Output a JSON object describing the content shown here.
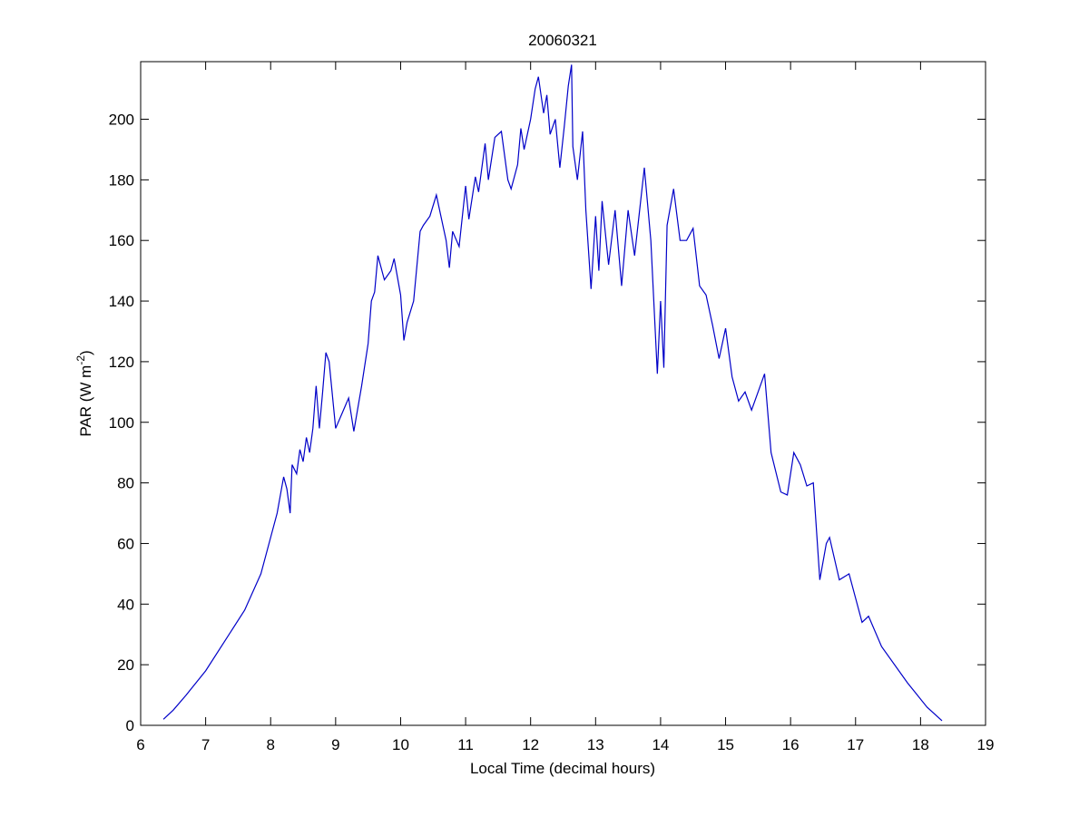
{
  "chart_data": {
    "type": "line",
    "title": "20060321",
    "xlabel": "Local Time (decimal hours)",
    "ylabel": [
      "PAR (W m",
      "-2",
      ")"
    ],
    "xlim": [
      6,
      19
    ],
    "xticks": [
      6,
      7,
      8,
      9,
      10,
      11,
      12,
      13,
      14,
      15,
      16,
      17,
      18,
      19
    ],
    "ylim": [
      0,
      219
    ],
    "yticks": [
      0,
      20,
      40,
      60,
      80,
      100,
      120,
      140,
      160,
      180,
      200
    ],
    "series": [
      {
        "color": "#0000c8",
        "x": [
          6.35,
          6.5,
          6.7,
          7.0,
          7.3,
          7.6,
          7.85,
          8.0,
          8.1,
          8.2,
          8.25,
          8.3,
          8.33,
          8.4,
          8.45,
          8.5,
          8.55,
          8.6,
          8.65,
          8.7,
          8.75,
          8.8,
          8.85,
          8.9,
          9.0,
          9.1,
          9.2,
          9.28,
          9.4,
          9.5,
          9.55,
          9.6,
          9.65,
          9.75,
          9.85,
          9.9,
          10.0,
          10.05,
          10.1,
          10.2,
          10.3,
          10.35,
          10.45,
          10.55,
          10.65,
          10.7,
          10.75,
          10.8,
          10.9,
          11.0,
          11.05,
          11.15,
          11.2,
          11.3,
          11.35,
          11.45,
          11.55,
          11.65,
          11.7,
          11.8,
          11.85,
          11.9,
          12.0,
          12.07,
          12.12,
          12.2,
          12.25,
          12.3,
          12.38,
          12.45,
          12.52,
          12.58,
          12.63,
          12.65,
          12.72,
          12.8,
          12.85,
          12.93,
          13.0,
          13.05,
          13.1,
          13.2,
          13.3,
          13.4,
          13.5,
          13.6,
          13.75,
          13.85,
          13.95,
          14.0,
          14.05,
          14.1,
          14.2,
          14.3,
          14.4,
          14.5,
          14.6,
          14.7,
          14.8,
          14.9,
          15.0,
          15.1,
          15.2,
          15.3,
          15.4,
          15.5,
          15.6,
          15.7,
          15.85,
          15.95,
          16.05,
          16.15,
          16.25,
          16.35,
          16.45,
          16.55,
          16.6,
          16.75,
          16.9,
          17.0,
          17.1,
          17.2,
          17.4,
          17.8,
          18.1,
          18.33
        ],
        "values": [
          2,
          5,
          10,
          18,
          28,
          38,
          50,
          62,
          70,
          82,
          78,
          70,
          86,
          83,
          91,
          87,
          95,
          90,
          98,
          112,
          98,
          110,
          123,
          120,
          98,
          103,
          108,
          97,
          112,
          126,
          140,
          143,
          155,
          147,
          150,
          154,
          142,
          127,
          133,
          140,
          163,
          165,
          168,
          175,
          165,
          160,
          151,
          163,
          158,
          178,
          167,
          181,
          176,
          192,
          180,
          194,
          196,
          180,
          177,
          185,
          197,
          190,
          200,
          210,
          214,
          202,
          208,
          195,
          200,
          184,
          198,
          211,
          218,
          191,
          180,
          196,
          170,
          144,
          168,
          150,
          173,
          152,
          170,
          145,
          170,
          155,
          184,
          160,
          116,
          140,
          118,
          165,
          177,
          160,
          160,
          164,
          145,
          142,
          132,
          121,
          131,
          115,
          107,
          110,
          104,
          110,
          116,
          90,
          77,
          76,
          90,
          86,
          79,
          80,
          48,
          60,
          62,
          48,
          50,
          42,
          34,
          36,
          26,
          14,
          6,
          1.5
        ]
      }
    ]
  }
}
